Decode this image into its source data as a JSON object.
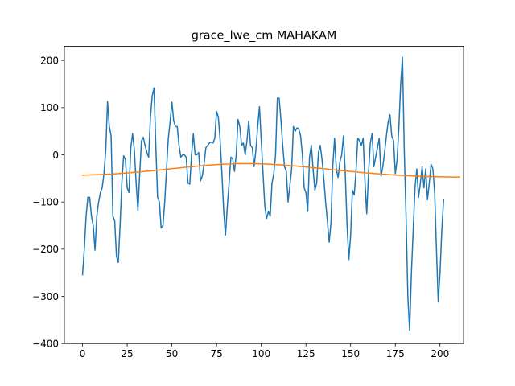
{
  "chart_data": {
    "type": "line",
    "title": "grace_lwe_cm MAHAKAM",
    "xlabel": "",
    "ylabel": "",
    "xlim": [
      -10.15,
      213.15
    ],
    "ylim": [
      -400,
      230
    ],
    "x_ticks": [
      0,
      25,
      50,
      75,
      100,
      125,
      150,
      175,
      200
    ],
    "y_ticks": [
      -400,
      -300,
      -200,
      -100,
      0,
      100,
      200
    ],
    "grid": false,
    "legend": "none",
    "series": [
      {
        "color": "#1f77b4",
        "x_start": 0,
        "x_step": 1,
        "values": [
          -254,
          -200,
          -130,
          -90,
          -90,
          -130,
          -150,
          -202,
          -130,
          -100,
          -80,
          -70,
          -40,
          10,
          113,
          60,
          40,
          -130,
          -140,
          -215,
          -228,
          -150,
          -60,
          -2,
          -10,
          -70,
          -80,
          15,
          45,
          10,
          -60,
          -118,
          -40,
          30,
          37,
          20,
          5,
          -5,
          80,
          125,
          142,
          20,
          -90,
          -100,
          -155,
          -150,
          -100,
          -30,
          35,
          70,
          112,
          72,
          60,
          60,
          20,
          -5,
          0,
          0,
          -5,
          -60,
          -62,
          0,
          45,
          0,
          0,
          5,
          -55,
          -45,
          -20,
          15,
          20,
          25,
          27,
          25,
          35,
          92,
          80,
          30,
          -40,
          -120,
          -170,
          -110,
          -60,
          -5,
          -8,
          -35,
          0,
          75,
          60,
          20,
          25,
          0,
          30,
          72,
          20,
          15,
          -25,
          10,
          60,
          102,
          30,
          -40,
          -110,
          -135,
          -120,
          -130,
          -60,
          -40,
          0,
          120,
          120,
          75,
          20,
          -25,
          -35,
          -100,
          -65,
          -30,
          60,
          50,
          57,
          55,
          40,
          0,
          -70,
          -80,
          -120,
          -5,
          20,
          -30,
          -75,
          -60,
          5,
          20,
          -10,
          -50,
          -100,
          -140,
          -185,
          -145,
          -25,
          35,
          -30,
          -48,
          -15,
          0,
          40,
          -40,
          -150,
          -222,
          -170,
          -75,
          -85,
          -35,
          35,
          30,
          20,
          35,
          -55,
          -125,
          -40,
          25,
          45,
          -25,
          -5,
          15,
          35,
          -45,
          -25,
          5,
          40,
          70,
          85,
          40,
          30,
          -40,
          -10,
          60,
          150,
          207,
          10,
          -130,
          -300,
          -372,
          -250,
          -160,
          -70,
          -30,
          -90,
          -60,
          -25,
          -70,
          -30,
          -95,
          -60,
          -20,
          -30,
          -80,
          -200,
          -312,
          -250,
          -160,
          -96
        ]
      },
      {
        "color": "#ff7f0e",
        "x_start": 0,
        "x_step": 1,
        "values": [
          -43.0,
          -42.9,
          -42.8,
          -42.7,
          -42.6,
          -42.5,
          -42.4,
          -42.3,
          -42.2,
          -42.0,
          -41.9,
          -41.7,
          -41.5,
          -41.3,
          -41.1,
          -40.9,
          -40.7,
          -40.5,
          -40.3,
          -40.0,
          -39.8,
          -39.5,
          -39.2,
          -39.0,
          -38.7,
          -38.4,
          -38.1,
          -37.8,
          -37.5,
          -37.1,
          -36.8,
          -36.5,
          -36.1,
          -35.8,
          -35.4,
          -35.1,
          -34.7,
          -34.4,
          -34.0,
          -33.6,
          -33.2,
          -32.9,
          -32.5,
          -32.1,
          -31.7,
          -31.3,
          -30.9,
          -30.5,
          -30.1,
          -29.8,
          -29.4,
          -29.0,
          -28.6,
          -28.2,
          -27.8,
          -27.4,
          -27.0,
          -26.6,
          -26.2,
          -25.9,
          -25.5,
          -25.1,
          -24.8,
          -24.4,
          -24.1,
          -23.7,
          -23.4,
          -23.0,
          -22.7,
          -22.4,
          -22.1,
          -21.8,
          -21.5,
          -21.2,
          -21.0,
          -20.7,
          -20.5,
          -20.3,
          -20.0,
          -19.8,
          -19.7,
          -19.5,
          -19.3,
          -19.2,
          -19.1,
          -19.0,
          -18.9,
          -18.8,
          -18.7,
          -18.7,
          -18.7,
          -18.6,
          -18.6,
          -18.7,
          -18.7,
          -18.7,
          -18.8,
          -18.9,
          -19.0,
          -19.1,
          -19.2,
          -19.3,
          -19.4,
          -19.6,
          -19.8,
          -19.9,
          -20.1,
          -20.3,
          -20.6,
          -20.8,
          -21.0,
          -21.3,
          -21.5,
          -21.8,
          -22.1,
          -22.4,
          -22.7,
          -23.0,
          -23.3,
          -23.6,
          -23.9,
          -24.3,
          -24.6,
          -25.0,
          -25.3,
          -25.7,
          -26.0,
          -26.4,
          -26.8,
          -27.1,
          -27.5,
          -27.9,
          -28.3,
          -28.6,
          -29.0,
          -29.4,
          -29.8,
          -30.2,
          -30.6,
          -31.0,
          -31.4,
          -31.8,
          -32.1,
          -32.5,
          -32.9,
          -33.3,
          -33.7,
          -34.1,
          -34.4,
          -34.8,
          -35.2,
          -35.5,
          -35.9,
          -36.3,
          -36.6,
          -37.0,
          -37.3,
          -37.6,
          -38.0,
          -38.3,
          -38.6,
          -38.9,
          -39.2,
          -39.5,
          -39.8,
          -40.1,
          -40.4,
          -40.7,
          -41.0,
          -41.2,
          -41.5,
          -41.8,
          -42.0,
          -42.3,
          -42.5,
          -42.7,
          -43.0,
          -43.2,
          -43.4,
          -43.6,
          -43.8,
          -44.0,
          -44.2,
          -44.4,
          -44.6,
          -44.7,
          -44.9,
          -45.1,
          -45.2,
          -45.4,
          -45.5,
          -45.7,
          -45.8,
          -45.9,
          -46.0,
          -46.1,
          -46.2,
          -46.3,
          -46.4,
          -46.5,
          -46.6,
          -46.7,
          -46.7,
          -46.8,
          -46.9,
          -46.9,
          -47.0,
          -47.0,
          -47.0,
          -47.1,
          -47.1,
          -47.1
        ]
      }
    ]
  }
}
